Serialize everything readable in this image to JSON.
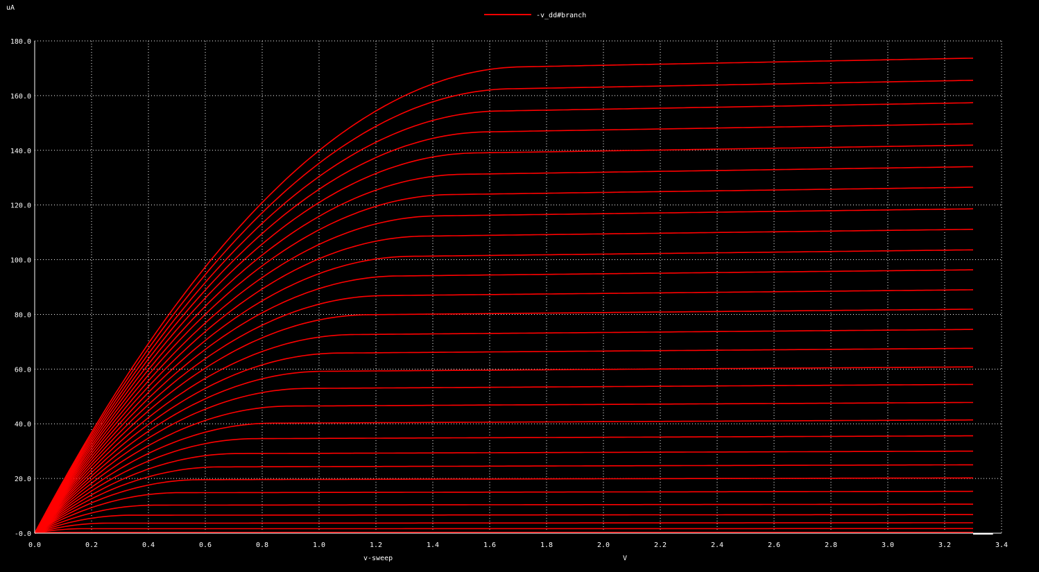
{
  "colors": {
    "background": "#000000",
    "grid": "#ffffff",
    "trace": "#ff0000",
    "text": "#ffffff"
  },
  "chart_data": {
    "type": "line",
    "legend": {
      "label": "-v_dd#branch",
      "position": "top-center"
    },
    "y_unit": "uA",
    "x_unit": "V",
    "xlabel": "v-sweep",
    "ylim": [
      0,
      180
    ],
    "xlim": [
      0,
      3.4
    ],
    "x_ticks": [
      0,
      0.2,
      0.4,
      0.6,
      0.8,
      1.0,
      1.2,
      1.4,
      1.6,
      1.8,
      2.0,
      2.2,
      2.4,
      2.6,
      2.8,
      3.0,
      3.2,
      3.4
    ],
    "x_tick_labels": [
      "0.0",
      "0.2",
      "0.4",
      "0.6",
      "0.8",
      "1.0",
      "1.2",
      "1.4",
      "1.6",
      "1.8",
      "2.0",
      "2.2",
      "2.4",
      "2.6",
      "2.8",
      "3.0",
      "3.2",
      "3.4"
    ],
    "y_ticks": [
      0,
      20,
      40,
      60,
      80,
      100,
      120,
      140,
      160,
      180
    ],
    "y_tick_labels": [
      "-0.0",
      "20.0",
      "40.0",
      "60.0",
      "80.0",
      "100.0",
      "120.0",
      "140.0",
      "160.0",
      "180.0"
    ],
    "grid": true,
    "x_end": 3.3,
    "series_description": "Family of drain-current curves vs. sweep voltage; each series listed by its saturation current (uA) at x=3.3",
    "curves_saturation_current": [
      0.3,
      1.7,
      3.8,
      6.8,
      10.6,
      15.3,
      20.2,
      25.0,
      30.0,
      35.6,
      41.4,
      47.8,
      54.4,
      60.8,
      67.6,
      74.5,
      81.9,
      89.0,
      96.3,
      103.6,
      111.1,
      118.6,
      126.5,
      134.0,
      141.9,
      149.7,
      157.4,
      165.6,
      173.7
    ]
  }
}
